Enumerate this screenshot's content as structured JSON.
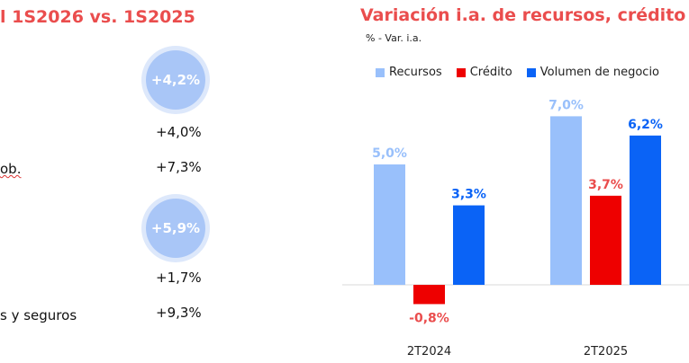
{
  "left": {
    "title": "l 1S2026 vs. 1S2025",
    "circle1": "+4,2%",
    "circle2": "+5,9%",
    "rows": [
      {
        "label": "",
        "value": "+4,0%"
      },
      {
        "label": "ob.",
        "value": "+7,3%"
      },
      {
        "label": "",
        "value": "+1,7%"
      },
      {
        "label": "s y seguros",
        "value": "+9,3%"
      }
    ]
  },
  "chart_data": {
    "type": "bar",
    "title": "Variación i.a. de recursos, crédito y v",
    "subtitle": "% - Var. i.a.",
    "categories": [
      "2T2024",
      "2T2025"
    ],
    "series": [
      {
        "name": "Recursos",
        "color": "#99c0fb",
        "label_color": "#99c0fb",
        "values": [
          5.0,
          7.0
        ],
        "labels": [
          "5,0%",
          "7,0%"
        ]
      },
      {
        "name": "Crédito",
        "color": "#ee0000",
        "label_color": "#ea4d4d",
        "values": [
          -0.8,
          3.7
        ],
        "labels": [
          "-0,8%",
          "3,7%"
        ]
      },
      {
        "name": "Volumen de negocio",
        "color": "#0a63f6",
        "label_color": "#0a63f6",
        "values": [
          3.3,
          6.2
        ],
        "labels": [
          "3,3%",
          "6,2%"
        ]
      }
    ],
    "xlabel": "",
    "ylabel": "",
    "legend": "top"
  }
}
